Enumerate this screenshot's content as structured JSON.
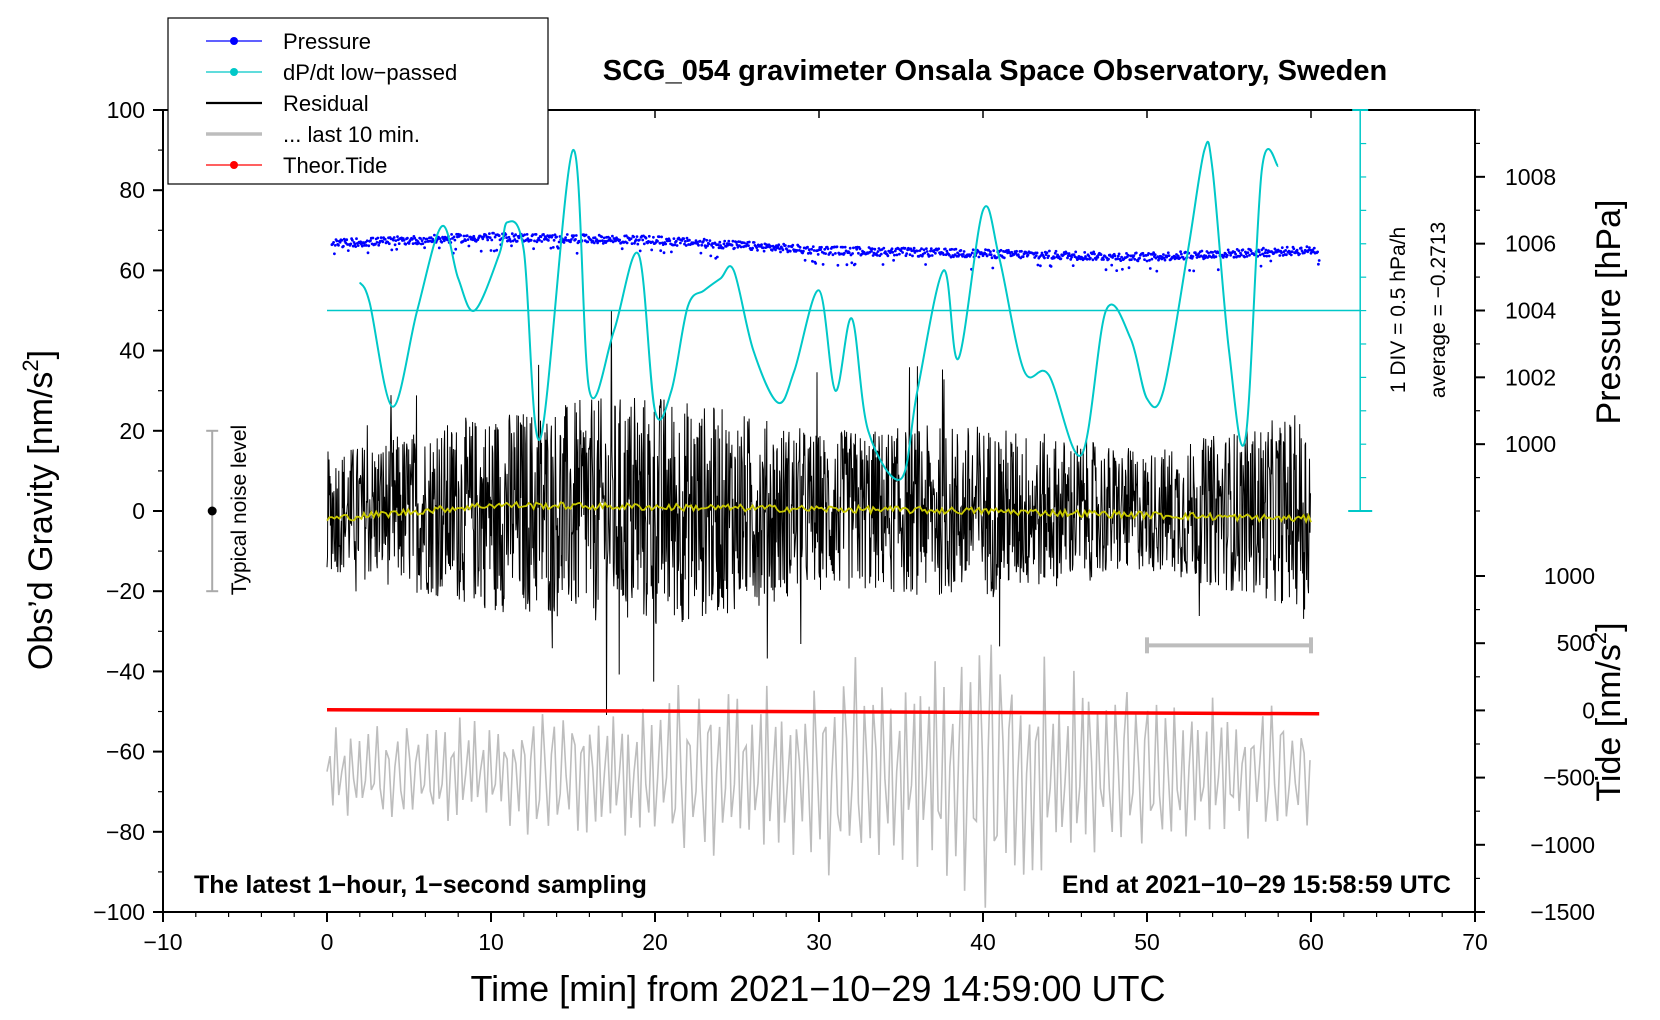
{
  "chart_data": {
    "type": "line",
    "title": "SCG_054 gravimeter Onsala Space Observatory, Sweden",
    "xlabel": "Time [min] from 2021−10−29 14:59:00 UTC",
    "ylabel_left": "Obs’d Gravity [nm/s",
    "ylabel_left_sup": "2",
    "ylabel_left_close": "]",
    "ylabel_right_pressure": "Pressure [hPa]",
    "ylabel_right_tide": "Tide [nm/s",
    "ylabel_right_tide_sup": "2",
    "ylabel_right_tide_close": "]",
    "xlim": [
      -10,
      70
    ],
    "ylim_left": [
      -100,
      100
    ],
    "x_ticks": [
      "−10",
      "0",
      "10",
      "20",
      "30",
      "40",
      "50",
      "60",
      "70"
    ],
    "x_tick_values": [
      -10,
      0,
      10,
      20,
      30,
      40,
      50,
      60,
      70
    ],
    "y_left_ticks": [
      "100",
      "80",
      "60",
      "40",
      "20",
      "0",
      "−20",
      "−40",
      "−60",
      "−80",
      "−100"
    ],
    "y_left_tick_values": [
      100,
      80,
      60,
      40,
      20,
      0,
      -20,
      -40,
      -60,
      -80,
      -100
    ],
    "pressure_ticks": [
      "1008",
      "1006",
      "1004",
      "1002",
      "1000"
    ],
    "pressure_tick_values": [
      1008,
      1006,
      1004,
      1002,
      1000
    ],
    "pressure_range_hpa": [
      998,
      1010
    ],
    "tide_ticks": [
      "1000",
      "500",
      "0",
      "−500",
      "−1000",
      "−1500"
    ],
    "tide_tick_values": [
      1000,
      500,
      0,
      -500,
      -1000,
      -1500
    ],
    "tide_range": [
      -1500,
      1000
    ],
    "footer_left": "The latest 1−hour, 1−second sampling",
    "footer_right": "End at 2021−10−29 15:58:59 UTC",
    "noise_label": "Typical noise level",
    "noise_level": {
      "x": -7,
      "center": 0,
      "range": [
        -20,
        20
      ]
    },
    "ddt_axis_label_1": "1 DIV = 0.5 hPa/h",
    "ddt_axis_label_2": "average = −0.2713",
    "ddt_average_level_gravity_units": 50,
    "ten_min_bar_x": [
      50,
      60
    ],
    "legend": [
      {
        "label": "Pressure",
        "color": "#0000ff",
        "marker": true,
        "lw": 1
      },
      {
        "label": "dP/dt low−passed",
        "color": "#00c8c8",
        "marker": true,
        "lw": 1
      },
      {
        "label": "Residual",
        "color": "#000000",
        "marker": false,
        "lw": 2
      },
      {
        "label": "... last 10 min.",
        "color": "#bdbdbd",
        "marker": false,
        "lw": 3
      },
      {
        "label": "Theor.Tide",
        "color": "#ff0000",
        "marker": true,
        "lw": 1
      }
    ],
    "series": [
      {
        "name": "Pressure",
        "color": "#0000ff",
        "units": "hPa",
        "x": [
          0,
          10,
          20,
          30,
          40,
          50,
          60
        ],
        "values": [
          1006.0,
          1006.2,
          1006.1,
          1005.8,
          1005.7,
          1005.6,
          1005.8
        ]
      },
      {
        "name": "dP/dt low−passed",
        "color": "#00c8c8",
        "units": "gravity-axis units",
        "x": [
          2,
          2.6,
          4,
          5.5,
          7,
          8,
          9,
          10.5,
          11,
          12,
          13,
          15,
          16,
          17.5,
          19,
          20,
          21,
          22,
          23,
          24,
          24.8,
          26,
          27.5,
          28.5,
          30,
          31,
          32,
          33,
          35,
          36,
          37.6,
          38.5,
          40,
          41,
          42.5,
          44,
          46,
          47.5,
          49,
          50,
          51,
          52.5,
          53.5,
          54,
          55,
          56,
          57,
          58
        ],
        "values": [
          57,
          52,
          26,
          50,
          71,
          58,
          50,
          64,
          72,
          65,
          18,
          90,
          30,
          45,
          64,
          25,
          30,
          51,
          55,
          58,
          60,
          40,
          27,
          35,
          55,
          30,
          48,
          20,
          8,
          30,
          60,
          38,
          75,
          63,
          35,
          34,
          14,
          50,
          43,
          28,
          30,
          65,
          90,
          85,
          40,
          18,
          85,
          86
        ]
      },
      {
        "name": "Residual",
        "color": "#000000",
        "units": "nm/s2",
        "x": [
          0,
          10,
          20,
          30,
          40,
          50,
          60
        ],
        "values": [
          0,
          0,
          0,
          0,
          0,
          0,
          0
        ],
        "amplitude_envelope": [
          15,
          25,
          30,
          20,
          22,
          15,
          25
        ]
      },
      {
        "name": "Residual (smoothed)",
        "color": "#c8c800",
        "units": "nm/s2",
        "x": [
          0,
          10,
          20,
          30,
          40,
          50,
          60
        ],
        "values": [
          -2,
          1.5,
          1,
          0.5,
          0,
          -1,
          -2
        ]
      },
      {
        "name": "... last 10 min.",
        "color": "#bdbdbd",
        "units": "nm/s2",
        "x": [
          0,
          10,
          20,
          30,
          40,
          50,
          60
        ],
        "center": -65,
        "amplitude_envelope": [
          8,
          12,
          15,
          20,
          25,
          18,
          10
        ]
      },
      {
        "name": "Theor.Tide",
        "color": "#ff0000",
        "units": "nm/s2",
        "x": [
          0,
          60.5
        ],
        "values": [
          5,
          -25
        ]
      }
    ]
  }
}
